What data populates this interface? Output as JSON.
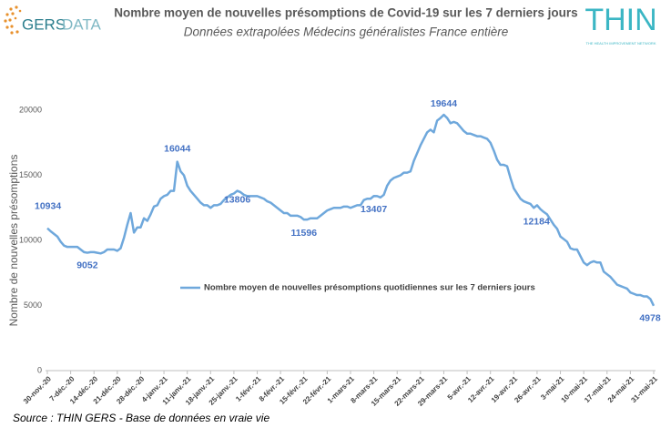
{
  "branding": {
    "left_logo": [
      "GERS",
      "DATA"
    ],
    "right_logo": "THIN",
    "right_logo_tagline": "THE HEALTH IMPROVEMENT NETWORK"
  },
  "chart_data": {
    "type": "line",
    "title": "Nombre moyen de nouvelles présomptions de Covid-19 sur les 7 derniers jours",
    "subtitle": "Données extrapolées Médecins généralistes France entière",
    "y_label": "Nombre de nouvelles présomptions",
    "source": "Source : THIN GERS - Base de données en vraie vie",
    "categories": [
      "30-nov.-20",
      null,
      null,
      null,
      null,
      null,
      null,
      "7-déc.-20",
      null,
      null,
      null,
      null,
      null,
      null,
      "14-déc.-20",
      null,
      null,
      null,
      null,
      null,
      null,
      "21-déc.-20",
      null,
      null,
      null,
      null,
      null,
      null,
      "28-déc.-20",
      null,
      null,
      null,
      null,
      null,
      null,
      "4-janv.-21",
      null,
      null,
      null,
      null,
      null,
      null,
      "11-janv.-21",
      null,
      null,
      null,
      null,
      null,
      null,
      "18-janv.-21",
      null,
      null,
      null,
      null,
      null,
      null,
      "25-janv.-21",
      null,
      null,
      null,
      null,
      null,
      null,
      "1-févr.-21",
      null,
      null,
      null,
      null,
      null,
      null,
      "8-févr.-21",
      null,
      null,
      null,
      null,
      null,
      null,
      "15-févr.-21",
      null,
      null,
      null,
      null,
      null,
      null,
      "22-févr.-21",
      null,
      null,
      null,
      null,
      null,
      null,
      "1-mars-21",
      null,
      null,
      null,
      null,
      null,
      null,
      "8-mars-21",
      null,
      null,
      null,
      null,
      null,
      null,
      "15-mars-21",
      null,
      null,
      null,
      null,
      null,
      null,
      "22-mars-21",
      null,
      null,
      null,
      null,
      null,
      null,
      "29-mars-21",
      null,
      null,
      null,
      null,
      null,
      null,
      "5-avr.-21",
      null,
      null,
      null,
      null,
      null,
      null,
      "12-avr.-21",
      null,
      null,
      null,
      null,
      null,
      null,
      "19-avr.-21",
      null,
      null,
      null,
      null,
      null,
      null,
      "26-avr.-21",
      null,
      null,
      null,
      null,
      null,
      null,
      "3-mai-21",
      null,
      null,
      null,
      null,
      null,
      null,
      "10-mai-21",
      null,
      null,
      null,
      null,
      null,
      null,
      "17-mai-21",
      null,
      null,
      null,
      null,
      null,
      null,
      "24-mai-21",
      null,
      null,
      null,
      null,
      null,
      null,
      "31-mai-21"
    ],
    "series": [
      {
        "name": "Nombre moyen de nouvelles présomptions quotidiennes sur les 7 derniers jours",
        "color": "#6fa8dc",
        "values": [
          10934,
          10700,
          10500,
          10300,
          9900,
          9600,
          9500,
          9500,
          9500,
          9500,
          9300,
          9100,
          9052,
          9100,
          9100,
          9050,
          9000,
          9100,
          9300,
          9300,
          9300,
          9200,
          9400,
          10200,
          11200,
          12100,
          10600,
          11000,
          11000,
          11700,
          11500,
          12000,
          12600,
          12700,
          13200,
          13400,
          13500,
          13800,
          13800,
          16044,
          15300,
          15000,
          14200,
          13800,
          13500,
          13200,
          12900,
          12700,
          12700,
          12500,
          12700,
          12700,
          12800,
          13100,
          13300,
          13500,
          13600,
          13806,
          13700,
          13500,
          13400,
          13400,
          13400,
          13400,
          13300,
          13200,
          13000,
          12900,
          12700,
          12500,
          12300,
          12100,
          12100,
          11900,
          11900,
          11900,
          11800,
          11596,
          11600,
          11700,
          11700,
          11700,
          11900,
          12100,
          12300,
          12400,
          12500,
          12500,
          12500,
          12600,
          12600,
          12500,
          12600,
          12700,
          12700,
          13100,
          13200,
          13200,
          13407,
          13400,
          13300,
          13500,
          14200,
          14600,
          14800,
          14900,
          15000,
          15200,
          15200,
          15300,
          16100,
          16700,
          17300,
          17800,
          18300,
          18500,
          18300,
          19200,
          19400,
          19644,
          19400,
          19000,
          19100,
          19000,
          18700,
          18400,
          18200,
          18200,
          18100,
          18000,
          18000,
          17900,
          17800,
          17500,
          16900,
          16200,
          15800,
          15800,
          15700,
          14800,
          14000,
          13600,
          13200,
          13000,
          12900,
          12800,
          12500,
          12700,
          12400,
          12184,
          12000,
          11600,
          11200,
          10900,
          10300,
          10100,
          9900,
          9400,
          9300,
          9300,
          8800,
          8300,
          8100,
          8300,
          8400,
          8300,
          8300,
          7600,
          7400,
          7200,
          6900,
          6600,
          6500,
          6400,
          6300,
          6000,
          5900,
          5800,
          5800,
          5700,
          5700,
          5500,
          4978
        ],
        "value_labels": [
          "10934",
          null,
          null,
          null,
          null,
          null,
          null,
          null,
          null,
          null,
          null,
          null,
          "9052",
          null,
          null,
          null,
          null,
          null,
          null,
          null,
          null,
          null,
          null,
          null,
          null,
          null,
          null,
          null,
          null,
          null,
          null,
          null,
          null,
          null,
          null,
          null,
          null,
          null,
          null,
          "16044",
          null,
          null,
          null,
          null,
          null,
          null,
          null,
          null,
          null,
          null,
          null,
          null,
          null,
          null,
          null,
          null,
          null,
          "13806",
          null,
          null,
          null,
          null,
          null,
          null,
          null,
          null,
          null,
          null,
          null,
          null,
          null,
          null,
          null,
          null,
          null,
          null,
          null,
          "11596",
          null,
          null,
          null,
          null,
          null,
          null,
          null,
          null,
          null,
          null,
          null,
          null,
          null,
          null,
          null,
          null,
          null,
          null,
          null,
          null,
          "13407",
          null,
          null,
          null,
          null,
          null,
          null,
          null,
          null,
          null,
          null,
          null,
          null,
          null,
          null,
          null,
          null,
          null,
          null,
          null,
          null,
          "19644",
          null,
          null,
          null,
          null,
          null,
          null,
          null,
          null,
          null,
          null,
          null,
          null,
          null,
          null,
          null,
          null,
          null,
          null,
          null,
          null,
          null,
          null,
          null,
          null,
          null,
          null,
          null,
          null,
          null,
          "12184",
          null,
          null,
          null,
          null,
          null,
          null,
          null,
          null,
          null,
          null,
          null,
          null,
          null,
          null,
          null,
          null,
          null,
          null,
          null,
          null,
          null,
          null,
          null,
          null,
          null,
          null,
          null,
          null,
          null,
          null,
          null,
          null,
          "4978"
        ]
      }
    ],
    "ylim": [
      0,
      20000
    ],
    "yticks": [
      0,
      5000,
      10000,
      15000,
      20000
    ],
    "grid": false,
    "legend": "center"
  }
}
